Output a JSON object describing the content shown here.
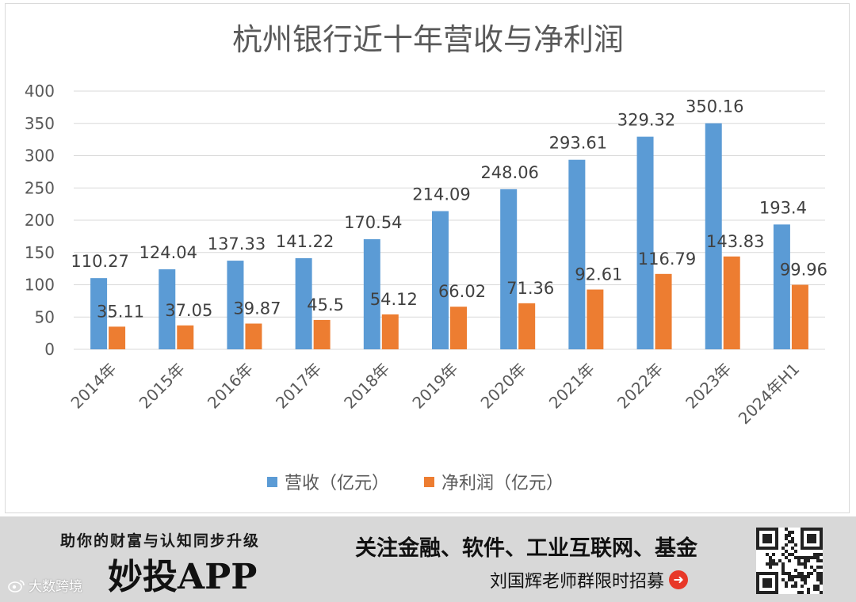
{
  "chart_data": {
    "type": "bar",
    "title": "杭州银行近十年营收与净利润",
    "categories": [
      "2014年",
      "2015年",
      "2016年",
      "2017年",
      "2018年",
      "2019年",
      "2020年",
      "2021年",
      "2022年",
      "2023年",
      "2024年H1"
    ],
    "series": [
      {
        "name": "营收（亿元）",
        "color": "#5b9bd5",
        "values": [
          110.27,
          124.04,
          137.33,
          141.22,
          170.54,
          214.09,
          248.06,
          293.61,
          329.32,
          350.16,
          193.4
        ]
      },
      {
        "name": "净利润（亿元）",
        "color": "#ed7d31",
        "values": [
          35.11,
          37.05,
          39.87,
          45.5,
          54.12,
          66.02,
          71.36,
          92.61,
          116.79,
          143.83,
          99.96
        ]
      }
    ],
    "ylim": [
      0,
      400
    ],
    "yticks": [
      "0",
      "50",
      "100",
      "150",
      "200",
      "250",
      "300",
      "350",
      "400"
    ],
    "grid": true,
    "legend": "bottom",
    "value_labels": {
      "revenue": [
        "110.27",
        "124.04",
        "137.33",
        "141.22",
        "170.54",
        "214.09",
        "248.06",
        "293.61",
        "329.32",
        "350.16",
        "193.4"
      ],
      "profit": [
        "35.11",
        "37.05",
        "39.87",
        "45.5",
        "54.12",
        "66.02",
        "71.36",
        "92.61",
        "116.79",
        "143.83",
        "99.96"
      ]
    }
  },
  "banner": {
    "tagline": "助你的财富与认知同步升级",
    "app_name": "妙投APP",
    "headline": "关注金融、软件、工业互联网、基金",
    "recruit": "刘国辉老师群限时招募",
    "recruit_icon": "arrow-right-circle-icon",
    "watermark": "大数跨境"
  }
}
